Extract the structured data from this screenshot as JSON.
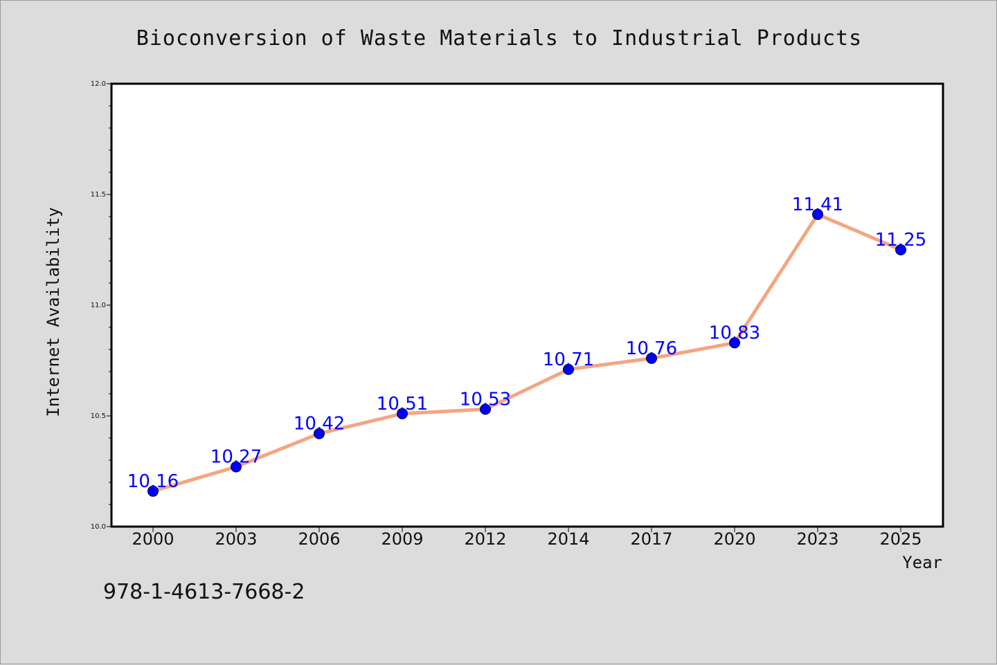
{
  "footer": {
    "code": "978-1-4613-7668-2"
  },
  "colors": {
    "line": "#f4a582",
    "marker": "#0000ff",
    "label": "#0000ff",
    "background": "#dcdcdc",
    "plot_bg": "#ffffff"
  },
  "chart_data": {
    "type": "line",
    "title": "Bioconversion of Waste Materials to Industrial Products",
    "xlabel": "Year",
    "ylabel": "Internet Availability",
    "categories": [
      "2000",
      "2003",
      "2006",
      "2009",
      "2012",
      "2014",
      "2017",
      "2020",
      "2023",
      "2025"
    ],
    "series": [
      {
        "values": [
          10.16,
          10.27,
          10.42,
          10.51,
          10.53,
          10.71,
          10.76,
          10.83,
          11.41,
          11.25
        ]
      }
    ],
    "data_labels": [
      "10.16",
      "10.27",
      "10.42",
      "10.51",
      "10.53",
      "10.71",
      "10.76",
      "10.83",
      "11.41",
      "11.25"
    ],
    "ylim": [
      10.0,
      12.0
    ],
    "yticks": [
      "10.0",
      "10.5",
      "11.0",
      "11.5",
      "12.0"
    ],
    "ytick_values": [
      10.0,
      10.5,
      11.0,
      11.5,
      12.0
    ],
    "grid": false,
    "legend": "none"
  }
}
